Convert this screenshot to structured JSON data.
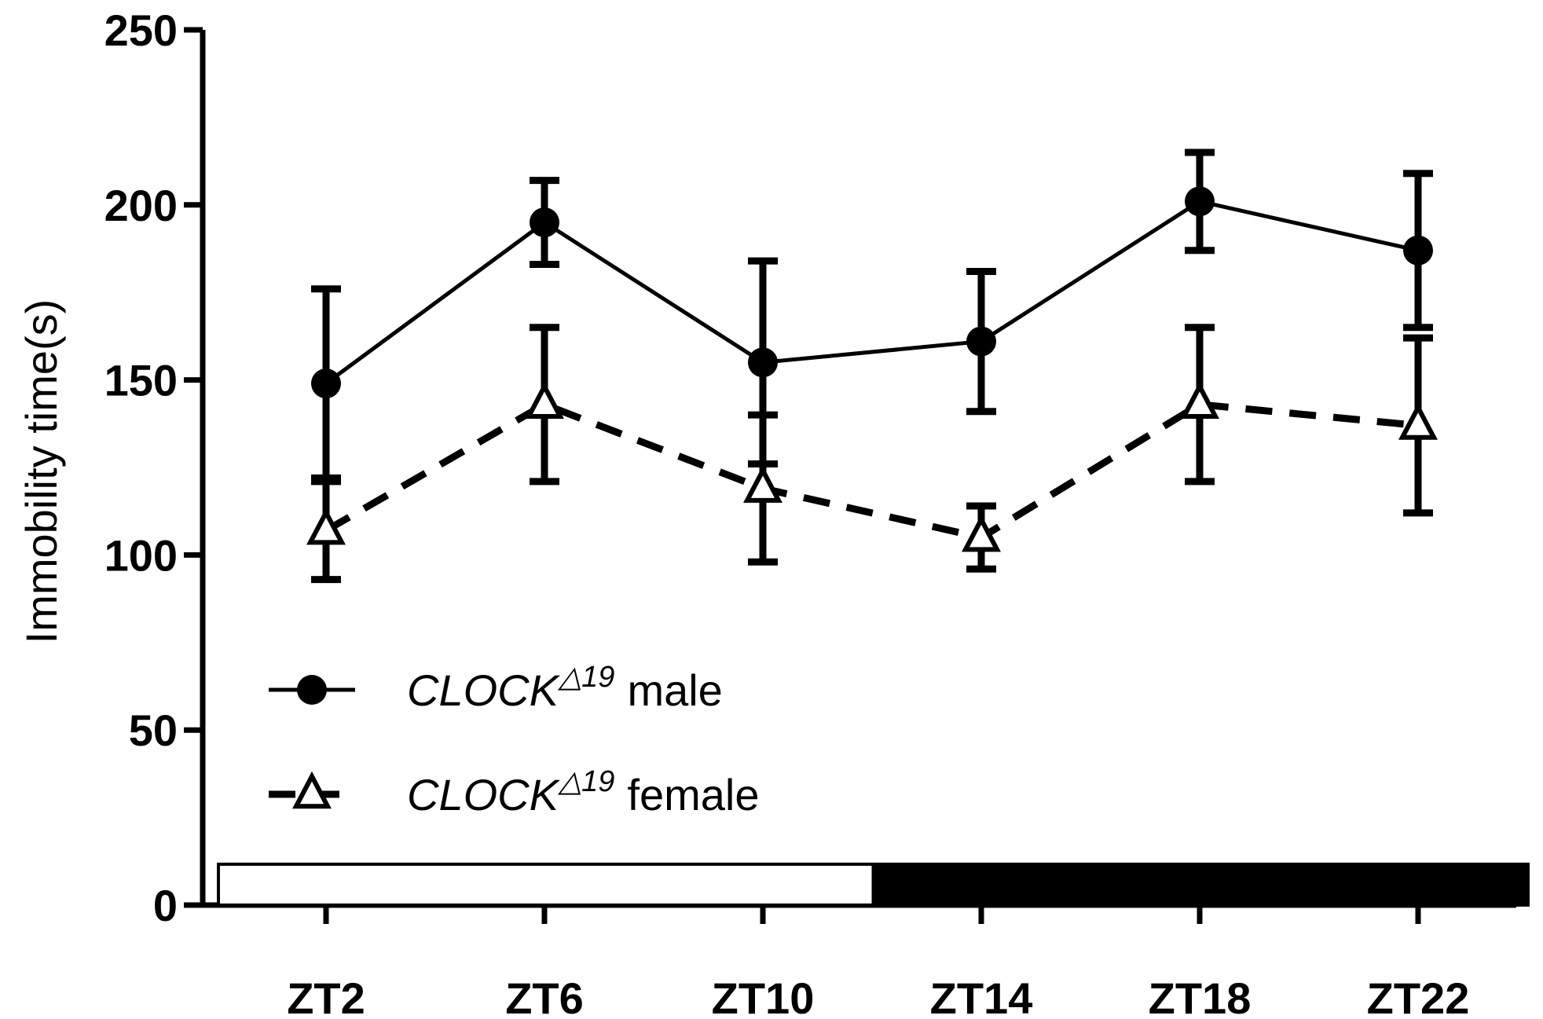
{
  "chart_data": {
    "type": "line",
    "title": "",
    "xlabel": "",
    "ylabel": "Immobility time(s)",
    "categories": [
      "ZT2",
      "ZT6",
      "ZT10",
      "ZT14",
      "ZT18",
      "ZT22"
    ],
    "ylim": [
      0,
      250
    ],
    "yticks": [
      0,
      50,
      100,
      150,
      200,
      250
    ],
    "grid": false,
    "legend_position": "lower-left",
    "series": [
      {
        "name": "male",
        "name_prefix": "CLOCK",
        "name_superscript": "△19",
        "marker": "circle",
        "line_style": "solid",
        "values": [
          149,
          195,
          155,
          161,
          201,
          187
        ],
        "error": [
          27,
          12,
          29,
          20,
          14,
          22
        ]
      },
      {
        "name": "female",
        "name_prefix": "CLOCK",
        "name_superscript": "△19",
        "marker": "open-triangle",
        "line_style": "dashed",
        "values": [
          107,
          143,
          119,
          105,
          143,
          137
        ],
        "error": [
          14,
          22,
          21,
          9,
          22,
          25
        ]
      }
    ],
    "light_dark_bar": {
      "light_color": "#ffffff",
      "dark_color": "#000000",
      "light_fraction": 0.5
    },
    "colors": {
      "ink": "#000000",
      "background": "#ffffff"
    }
  }
}
